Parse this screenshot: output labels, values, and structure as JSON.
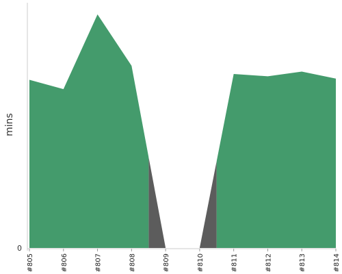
{
  "chart_data": {
    "type": "area",
    "title": "",
    "xlabel": "",
    "ylabel": "mins",
    "categories": [
      "#805",
      "#806",
      "#807",
      "#808",
      "#809",
      "#810",
      "#811",
      "#812",
      "#813",
      "#814"
    ],
    "ylim": [
      0,
      100
    ],
    "y_ticks": [
      {
        "value": 0,
        "label": "0"
      }
    ],
    "grid": false,
    "legend": "none",
    "series": [
      {
        "values": [
          72,
          68,
          100,
          78,
          0,
          0,
          74.5,
          73.5,
          75.5,
          72.5
        ],
        "color": "#449b6c",
        "break_color": "#5c5c5c"
      }
    ]
  }
}
